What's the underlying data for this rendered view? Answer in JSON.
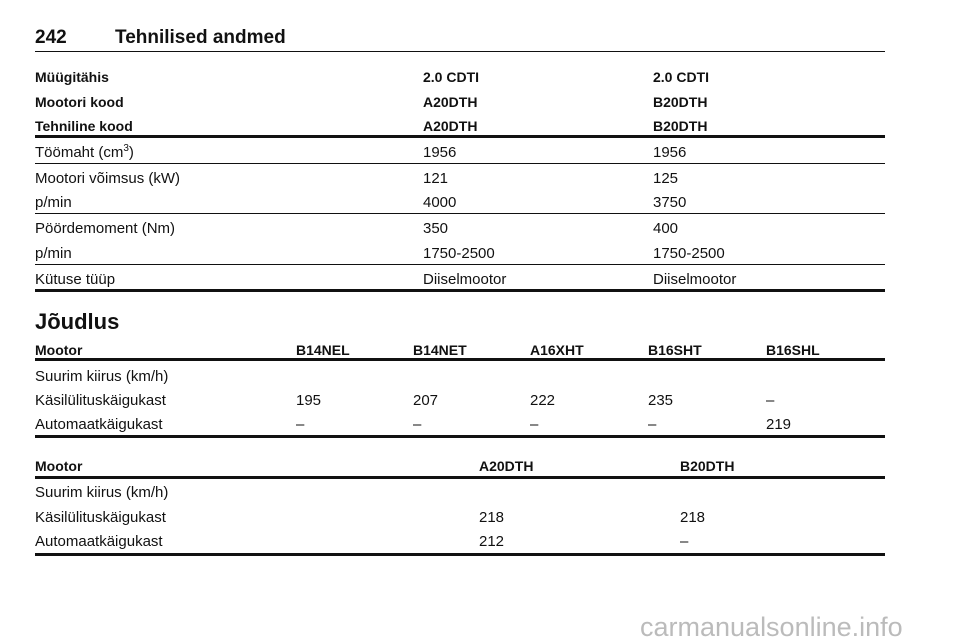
{
  "header": {
    "page_number": "242",
    "title": "Tehnilised andmed"
  },
  "table1": {
    "header_rows": [
      [
        "Müügitähis",
        "2.0 CDTI",
        "2.0 CDTI"
      ],
      [
        "Mootori kood",
        "A20DTH",
        "B20DTH"
      ],
      [
        "Tehniline kood",
        "A20DTH",
        "B20DTH"
      ]
    ],
    "rows": [
      [
        [
          "Töömaht (cm",
          "3",
          ")"
        ],
        "1956",
        "1956"
      ],
      [
        "Mootori võimsus (kW)",
        "121",
        "125"
      ],
      [
        "p/min",
        "4000",
        "3750"
      ],
      [
        "Pöördemoment (Nm)",
        "350",
        "400"
      ],
      [
        "p/min",
        "1750-2500",
        "1750-2500"
      ],
      [
        "Kütuse tüüp",
        "Diiselmootor",
        "Diiselmootor"
      ]
    ]
  },
  "section_title": "Jõudlus",
  "table2": {
    "header_rows": [
      [
        "Mootor",
        "B14NEL",
        "B14NET",
        "A16XHT",
        "B16SHT",
        "B16SHL"
      ]
    ],
    "rows": [
      [
        "Suurim kiirus (km/h)"
      ],
      [
        "Käsilülituskäigukast",
        "195",
        "207",
        "222",
        "235",
        "–"
      ],
      [
        "Automaatkäigukast",
        "–",
        "–",
        "–",
        "–",
        "219"
      ]
    ]
  },
  "table3": {
    "header_rows": [
      [
        "Mootor",
        "A20DTH",
        "B20DTH"
      ]
    ],
    "rows": [
      [
        "Suurim kiirus (km/h)"
      ],
      [
        "Käsilülituskäigukast",
        "218",
        "218"
      ],
      [
        "Automaatkäigukast",
        "212",
        "–"
      ]
    ]
  },
  "watermark": "carmanualsonline.info"
}
